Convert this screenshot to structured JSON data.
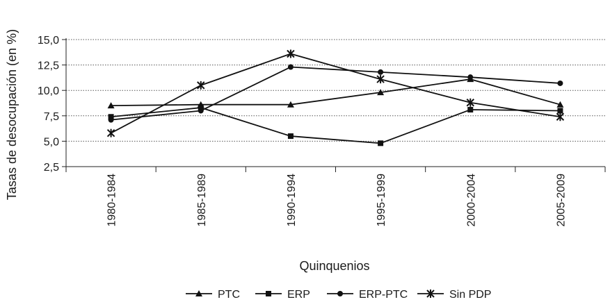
{
  "chart_data": {
    "type": "line",
    "title": "",
    "xlabel": "Quinquenios",
    "ylabel": "Tasas de desocupación (en %)",
    "categories": [
      "1980-1984",
      "1985-1989",
      "1990-1994",
      "1995-1999",
      "2000-2004",
      "2005-2009"
    ],
    "y_ticks": [
      "2,5",
      "5,0",
      "7,5",
      "10,0",
      "12,5",
      "15,0"
    ],
    "ylim": [
      2.5,
      15.0
    ],
    "grid": "horizontal dotted",
    "legend_position": "bottom",
    "series": [
      {
        "name": "PTC",
        "marker": "triangle",
        "values": [
          8.5,
          8.6,
          8.6,
          9.8,
          11.1,
          8.6
        ]
      },
      {
        "name": "ERP",
        "marker": "square",
        "values": [
          7.4,
          8.3,
          5.5,
          4.8,
          8.1,
          8.0
        ]
      },
      {
        "name": "ERP-PTC",
        "marker": "circle",
        "values": [
          7.1,
          8.0,
          12.3,
          11.8,
          11.3,
          10.7
        ]
      },
      {
        "name": "Sin PDP",
        "marker": "star",
        "values": [
          5.8,
          10.5,
          13.6,
          11.1,
          8.8,
          7.4
        ]
      }
    ]
  }
}
